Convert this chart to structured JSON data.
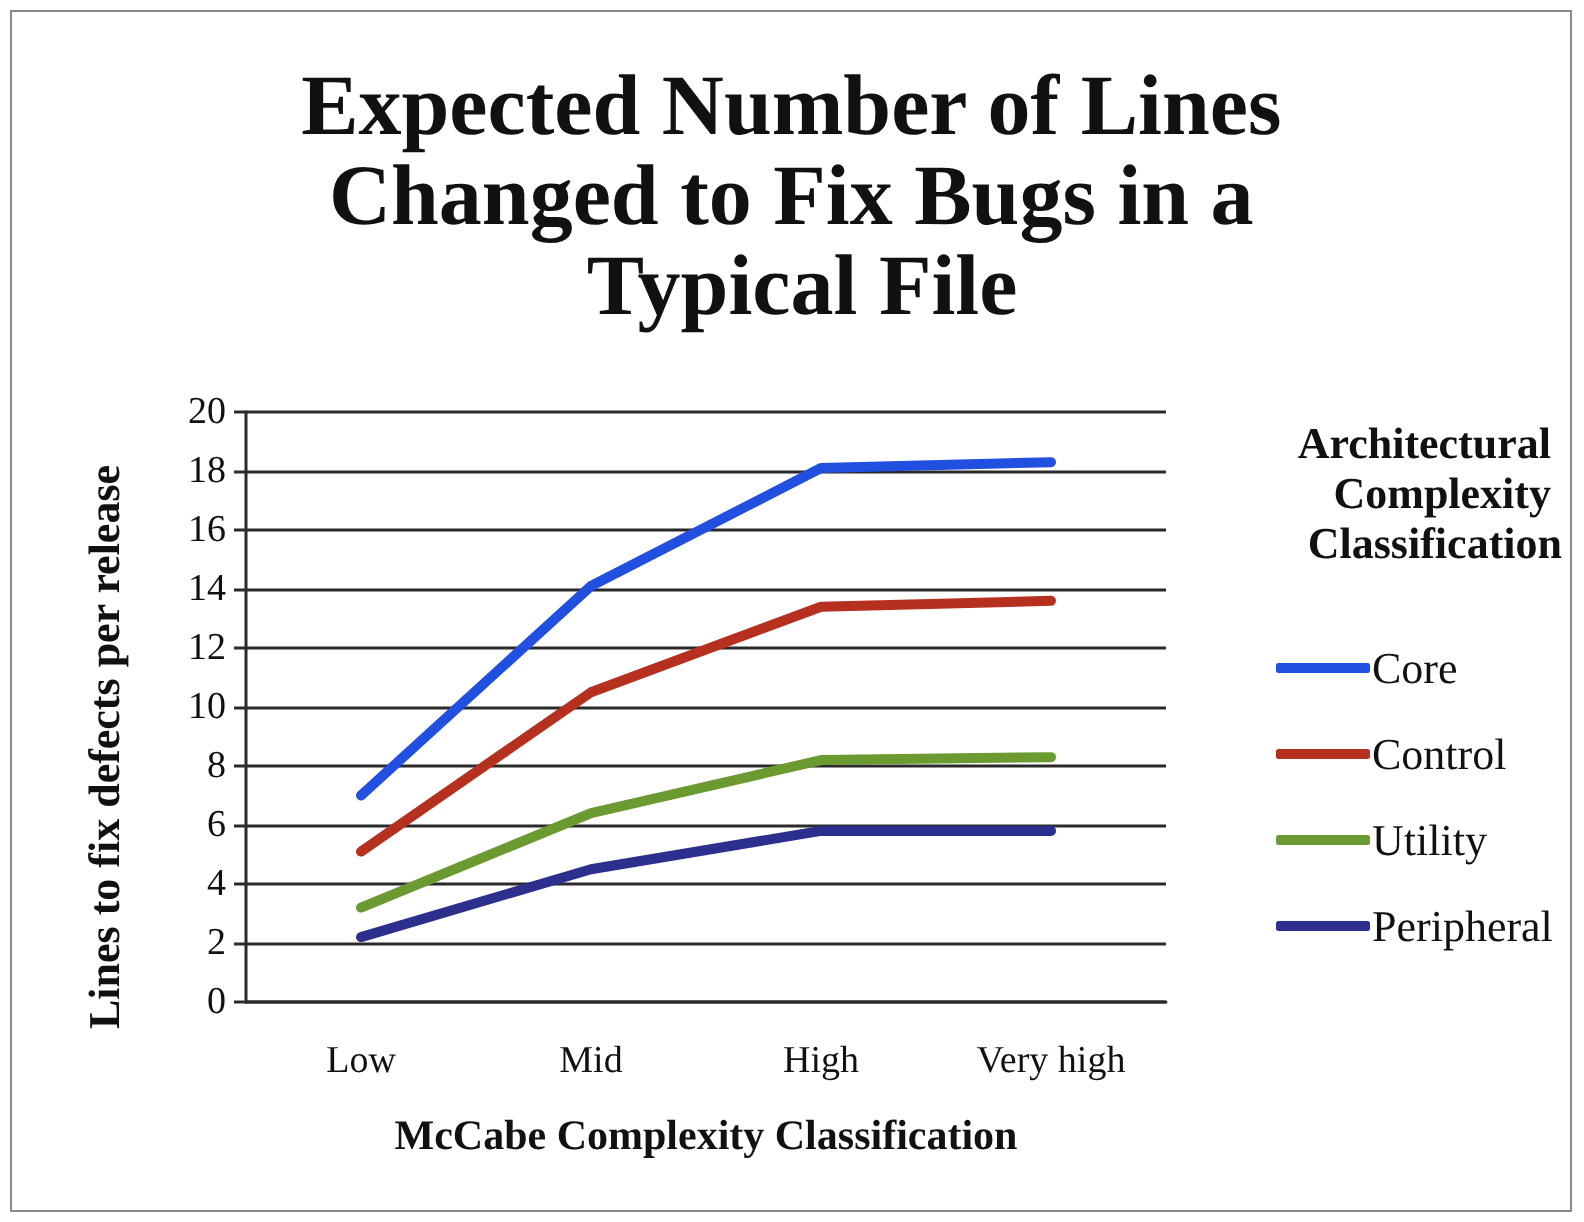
{
  "chart_data": {
    "type": "line",
    "title": "Expected Number of Lines Changed to Fix Bugs in a Typical File",
    "xlabel": "McCabe Complexity Classification",
    "ylabel": "Lines to fix defects per release",
    "legend_title": "Architectural Complexity Classification",
    "categories": [
      "Low",
      "Mid",
      "High",
      "Very high"
    ],
    "series": [
      {
        "name": "Core",
        "color": "#2150e0",
        "values": [
          7.0,
          14.1,
          18.1,
          18.3
        ]
      },
      {
        "name": "Control",
        "color": "#b5301f",
        "values": [
          5.1,
          10.5,
          13.4,
          13.6
        ]
      },
      {
        "name": "Utility",
        "color": "#6b9a30",
        "values": [
          3.2,
          6.4,
          8.2,
          8.3
        ]
      },
      {
        "name": "Peripheral",
        "color": "#2d2f8f",
        "values": [
          2.2,
          4.5,
          5.8,
          5.8
        ]
      }
    ],
    "ylim": [
      0,
      20
    ],
    "yticks": [
      0,
      2,
      4,
      6,
      8,
      10,
      12,
      14,
      16,
      18,
      20
    ],
    "grid": "y",
    "legend": "right",
    "marker": "none",
    "line_style": "solid"
  }
}
